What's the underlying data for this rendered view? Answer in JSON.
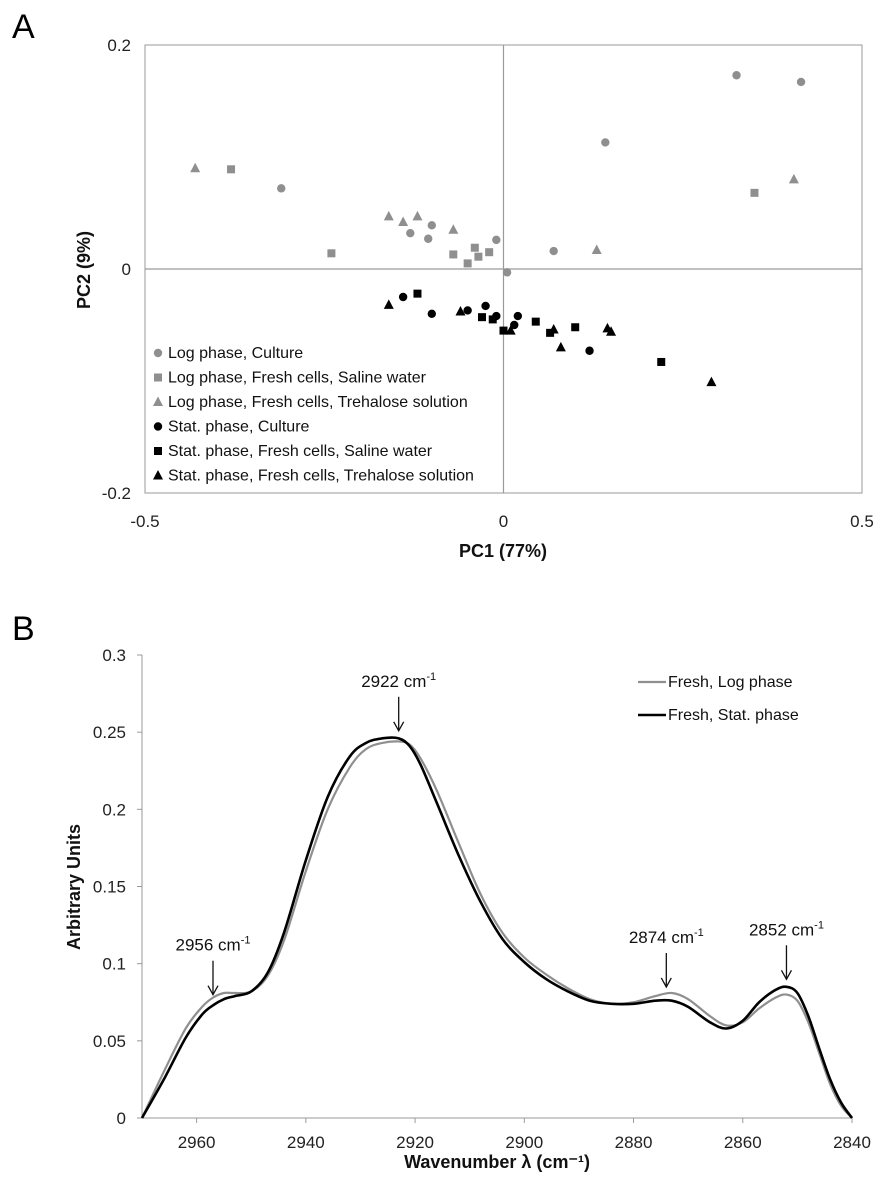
{
  "figure": {
    "panel_a_letter": "A",
    "panel_b_letter": "B"
  },
  "colors": {
    "gray": "#8f8f8f",
    "black": "#000000",
    "axis": "#9a9a9a"
  },
  "chart_data": [
    {
      "type": "scatter",
      "panel": "A",
      "title": "",
      "xlabel": "PC1 (77%)",
      "ylabel": "PC2 (9%)",
      "xlim": [
        -0.5,
        0.5
      ],
      "ylim": [
        -0.2,
        0.2
      ],
      "xticks": [
        "-0.5",
        "0",
        "0.5"
      ],
      "yticks": [
        "0.2",
        "0",
        "-0.2"
      ],
      "xtick_values": [
        -0.5,
        0,
        0.5
      ],
      "ytick_values": [
        0.2,
        0,
        -0.2
      ],
      "grid": false,
      "legend_position": "bottom-left",
      "series": [
        {
          "name": "Log phase, Culture",
          "marker": "circle",
          "color": "gray",
          "points": [
            [
              0.325,
              0.173
            ],
            [
              0.415,
              0.167
            ],
            [
              0.142,
              0.113
            ],
            [
              -0.31,
              0.072
            ],
            [
              -0.13,
              0.032
            ],
            [
              -0.1,
              0.039
            ],
            [
              -0.105,
              0.027
            ],
            [
              -0.01,
              0.026
            ],
            [
              0.07,
              0.016
            ],
            [
              0.005,
              -0.003
            ]
          ]
        },
        {
          "name": "Log phase, Fresh cells, Saline water",
          "marker": "square",
          "color": "gray",
          "points": [
            [
              -0.38,
              0.089
            ],
            [
              -0.24,
              0.014
            ],
            [
              -0.07,
              0.013
            ],
            [
              -0.04,
              0.019
            ],
            [
              -0.035,
              0.011
            ],
            [
              -0.02,
              0.015
            ],
            [
              -0.05,
              0.005
            ],
            [
              0.35,
              0.068
            ]
          ]
        },
        {
          "name": "Log phase, Fresh cells, Trehalose solution",
          "marker": "triangle",
          "color": "gray",
          "points": [
            [
              -0.43,
              0.09
            ],
            [
              -0.16,
              0.047
            ],
            [
              -0.14,
              0.042
            ],
            [
              -0.12,
              0.047
            ],
            [
              -0.07,
              0.035
            ],
            [
              0.13,
              0.017
            ],
            [
              0.405,
              0.08
            ]
          ]
        },
        {
          "name": "Stat. phase, Culture",
          "marker": "circle",
          "color": "black",
          "points": [
            [
              -0.14,
              -0.025
            ],
            [
              -0.1,
              -0.04
            ],
            [
              -0.05,
              -0.037
            ],
            [
              -0.025,
              -0.033
            ],
            [
              -0.01,
              -0.042
            ],
            [
              0.015,
              -0.05
            ],
            [
              0.02,
              -0.042
            ],
            [
              0.12,
              -0.073
            ]
          ]
        },
        {
          "name": "Stat. phase, Fresh cells, Saline water",
          "marker": "square",
          "color": "black",
          "points": [
            [
              -0.12,
              -0.022
            ],
            [
              -0.03,
              -0.043
            ],
            [
              -0.015,
              -0.045
            ],
            [
              0.0,
              -0.055
            ],
            [
              0.045,
              -0.047
            ],
            [
              0.065,
              -0.057
            ],
            [
              0.1,
              -0.052
            ],
            [
              0.22,
              -0.083
            ]
          ]
        },
        {
          "name": "Stat. phase, Fresh cells, Trehalose solution",
          "marker": "triangle",
          "color": "black",
          "points": [
            [
              -0.16,
              -0.032
            ],
            [
              -0.06,
              -0.038
            ],
            [
              0.01,
              -0.055
            ],
            [
              0.07,
              -0.054
            ],
            [
              0.08,
              -0.07
            ],
            [
              0.145,
              -0.053
            ],
            [
              0.15,
              -0.056
            ],
            [
              0.29,
              -0.101
            ]
          ]
        }
      ]
    },
    {
      "type": "line",
      "panel": "B",
      "title": "",
      "xlabel": "Wavenumber λ (cm⁻¹)",
      "ylabel": "Arbitrary Units",
      "xlim": [
        2970,
        2840
      ],
      "ylim": [
        0,
        0.3
      ],
      "xticks": [
        "2960",
        "2940",
        "2920",
        "2900",
        "2880",
        "2860",
        "2840"
      ],
      "xtick_values": [
        2960,
        2940,
        2920,
        2900,
        2880,
        2860,
        2840
      ],
      "yticks": [
        "0",
        "0.05",
        "0.1",
        "0.15",
        "0.2",
        "0.25",
        "0.3"
      ],
      "ytick_values": [
        0,
        0.05,
        0.1,
        0.15,
        0.2,
        0.25,
        0.3
      ],
      "grid": false,
      "legend_position": "top-right",
      "series": [
        {
          "name": "Fresh, Log phase",
          "color": "gray",
          "x": [
            2970,
            2966,
            2962,
            2959,
            2957,
            2955,
            2953,
            2950,
            2947,
            2944,
            2940,
            2936,
            2932,
            2929,
            2926,
            2923,
            2921,
            2919,
            2916,
            2912,
            2908,
            2904,
            2900,
            2896,
            2892,
            2888,
            2884,
            2880,
            2876,
            2873,
            2870,
            2866,
            2863,
            2860,
            2857,
            2854,
            2852,
            2850,
            2848,
            2846,
            2844,
            2842,
            2840
          ],
          "y": [
            0.0,
            0.03,
            0.058,
            0.072,
            0.078,
            0.081,
            0.081,
            0.082,
            0.092,
            0.115,
            0.16,
            0.2,
            0.227,
            0.239,
            0.243,
            0.244,
            0.242,
            0.233,
            0.212,
            0.178,
            0.145,
            0.12,
            0.104,
            0.093,
            0.084,
            0.077,
            0.074,
            0.075,
            0.079,
            0.081,
            0.077,
            0.066,
            0.06,
            0.062,
            0.071,
            0.078,
            0.08,
            0.076,
            0.062,
            0.042,
            0.022,
            0.008,
            0.0
          ]
        },
        {
          "name": "Fresh, Stat. phase",
          "color": "black",
          "x": [
            2970,
            2966,
            2962,
            2959,
            2957,
            2955,
            2953,
            2950,
            2947,
            2944,
            2940,
            2936,
            2932,
            2929,
            2926,
            2923,
            2921,
            2919,
            2916,
            2912,
            2908,
            2904,
            2900,
            2896,
            2892,
            2888,
            2884,
            2880,
            2876,
            2873,
            2870,
            2866,
            2863,
            2860,
            2857,
            2854,
            2852,
            2850,
            2848,
            2846,
            2844,
            2842,
            2840
          ],
          "y": [
            0.0,
            0.025,
            0.052,
            0.067,
            0.073,
            0.077,
            0.079,
            0.082,
            0.094,
            0.12,
            0.167,
            0.208,
            0.234,
            0.243,
            0.246,
            0.246,
            0.241,
            0.229,
            0.204,
            0.17,
            0.14,
            0.116,
            0.101,
            0.09,
            0.082,
            0.076,
            0.074,
            0.074,
            0.076,
            0.076,
            0.072,
            0.062,
            0.058,
            0.063,
            0.075,
            0.083,
            0.085,
            0.081,
            0.066,
            0.045,
            0.025,
            0.01,
            0.0
          ]
        }
      ],
      "annotations": [
        {
          "label": "2956 cm",
          "sup": "-1",
          "x": 2957,
          "y": 0.076
        },
        {
          "label": "2922 cm",
          "sup": "-1",
          "x": 2923,
          "y": 0.247
        },
        {
          "label": "2874 cm",
          "sup": "-1",
          "x": 2874,
          "y": 0.081
        },
        {
          "label": "2852 cm",
          "sup": "-1",
          "x": 2852,
          "y": 0.086
        }
      ]
    }
  ]
}
